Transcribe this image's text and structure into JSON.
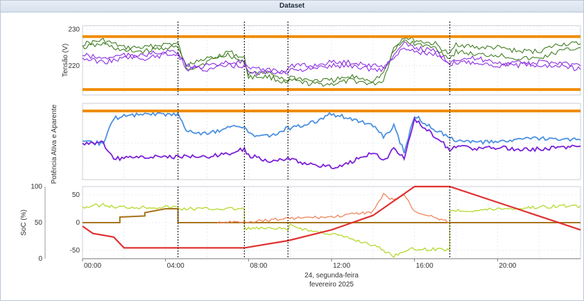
{
  "window": {
    "title": "Dataset"
  },
  "colors": {
    "orange_limit": "#f08c00",
    "dark_green": "#3f7d20",
    "purple": "#8a2be2",
    "blue": "#4a90e2",
    "violet": "#7a1fd8",
    "lime": "#b4d82b",
    "brown": "#a6731a",
    "salmon": "#f0845a",
    "red": "#e03030",
    "divider": "#222222",
    "grid": "#d9dde4"
  },
  "chart_data": [
    {
      "type": "line",
      "ylabel": "Tensão (V)",
      "ylim": [
        212,
        231
      ],
      "yticks": [
        "230",
        "220"
      ],
      "ytick_values": [
        230,
        220
      ],
      "x": [
        0,
        1,
        2,
        3,
        4,
        4.6,
        5,
        6,
        7,
        7.8,
        8,
        9,
        9.9,
        10,
        11,
        12,
        13,
        14,
        14.5,
        15,
        15.5,
        16,
        17,
        17.7,
        18,
        19,
        20,
        21,
        22,
        23,
        24
      ],
      "limits": [
        228,
        213.5
      ],
      "series": [
        {
          "name": "",
          "color_key": "dark_green",
          "values": [
            226,
            227,
            225,
            225,
            226,
            226,
            219,
            221,
            224,
            222,
            217,
            217,
            215,
            216,
            215,
            215,
            216,
            215,
            216,
            225,
            228,
            227,
            226,
            223,
            226,
            225,
            225,
            224,
            224,
            226,
            226
          ]
        },
        {
          "name": "",
          "color_key": "dark_green",
          "values": [
            225,
            226,
            224,
            224,
            225,
            225,
            220,
            222,
            223,
            221,
            218,
            218,
            216,
            217,
            216,
            216,
            217,
            216,
            218,
            224,
            227,
            226,
            225,
            222,
            224,
            223,
            223,
            222,
            222,
            224,
            225
          ]
        },
        {
          "name": "",
          "color_key": "purple",
          "values": [
            222,
            221,
            222,
            223,
            224,
            224,
            219,
            220,
            221,
            221,
            219,
            219,
            218,
            219,
            219,
            220,
            220,
            219,
            219,
            223,
            226,
            225,
            224,
            221,
            222,
            222,
            221,
            220,
            221,
            221,
            220
          ]
        },
        {
          "name": "",
          "color_key": "purple",
          "values": [
            223,
            222,
            223,
            222,
            223,
            223,
            220,
            219,
            220,
            220,
            218,
            218,
            219,
            220,
            220,
            221,
            221,
            220,
            220,
            222,
            225,
            224,
            223,
            220,
            221,
            221,
            220,
            221,
            220,
            220,
            219
          ]
        }
      ]
    },
    {
      "type": "line",
      "ylabel": "Potência Ativa e Aparente",
      "ylim": [
        -1.2,
        1.3
      ],
      "limits": [
        1.05
      ],
      "x": [
        0,
        1,
        1.5,
        2,
        3,
        4,
        4.6,
        5,
        6,
        7,
        7.8,
        8,
        9,
        9.9,
        10,
        11,
        12,
        13,
        14,
        14.5,
        15,
        15.5,
        16,
        17,
        17.7,
        18,
        19,
        20,
        21,
        22,
        23,
        24
      ],
      "series": [
        {
          "name": "",
          "color_key": "blue",
          "values": [
            0,
            0,
            0.8,
            0.9,
            0.95,
            0.95,
            0.95,
            0.4,
            0.3,
            0.5,
            0.55,
            0.3,
            0.2,
            0.5,
            0.5,
            0.65,
            0.95,
            0.8,
            0.55,
            0.2,
            0.55,
            -0.3,
            0.9,
            0.4,
            0.2,
            0.1,
            0,
            0.05,
            0.1,
            0.15,
            0.1,
            0.1
          ]
        },
        {
          "name": "",
          "color_key": "violet",
          "values": [
            0,
            0,
            -0.5,
            -0.5,
            -0.45,
            -0.45,
            -0.45,
            -0.45,
            -0.45,
            -0.35,
            -0.2,
            -0.4,
            -0.6,
            -0.5,
            -0.55,
            -0.7,
            -0.8,
            -0.6,
            -0.3,
            -0.6,
            -0.2,
            -0.5,
            0.8,
            0.2,
            -0.2,
            -0.1,
            -0.2,
            -0.15,
            -0.2,
            -0.2,
            -0.15,
            -0.1
          ]
        }
      ]
    },
    {
      "type": "line",
      "ylabel": "SoC (%)",
      "ylim_left": [
        0,
        100
      ],
      "yticks_left": [
        "100",
        "50",
        "0"
      ],
      "ytick_left_values": [
        100,
        50,
        0
      ],
      "ylim_right": [
        -65,
        65
      ],
      "yticks_right": [
        "50",
        "0",
        "-50"
      ],
      "ytick_right_values": [
        50,
        0,
        -50
      ],
      "xticks": [
        "00:00",
        "04:00",
        "08:00",
        "12:00",
        "16:00",
        "20:00"
      ],
      "xtick_values": [
        0,
        4,
        8,
        12,
        16,
        20
      ],
      "xlim": [
        0,
        24
      ],
      "xcaption": [
        "24, segunda-feira",
        "fevereiro 2025"
      ],
      "dividers": [
        4.6,
        7.8,
        9.9,
        17.7
      ],
      "series_right": [
        {
          "name": "",
          "color_key": "lime",
          "points": [
            [
              0,
              28
            ],
            [
              1,
              32
            ],
            [
              1.5,
              28
            ],
            [
              3,
              28
            ],
            [
              4.6,
              28
            ],
            [
              4.6,
              25
            ],
            [
              7.8,
              25
            ],
            [
              7.8,
              -10
            ],
            [
              9.9,
              -12
            ],
            [
              10,
              -5
            ],
            [
              11,
              -15
            ],
            [
              12,
              -20
            ],
            [
              13,
              -30
            ],
            [
              14,
              -40
            ],
            [
              14.5,
              -50
            ],
            [
              15,
              -60
            ],
            [
              15.5,
              -50
            ],
            [
              16,
              -48
            ],
            [
              17,
              -48
            ],
            [
              17.7,
              -48
            ],
            [
              17.7,
              22
            ],
            [
              19,
              22
            ],
            [
              20,
              25
            ],
            [
              21,
              26
            ],
            [
              22,
              28
            ],
            [
              23,
              30
            ],
            [
              24,
              30
            ]
          ]
        },
        {
          "name": "",
          "color_key": "brown",
          "points": [
            [
              0,
              0
            ],
            [
              1.8,
              0
            ],
            [
              1.8,
              10
            ],
            [
              3,
              12
            ],
            [
              3,
              18
            ],
            [
              4,
              25
            ],
            [
              4.6,
              25
            ],
            [
              4.6,
              0
            ],
            [
              24,
              0
            ]
          ]
        },
        {
          "name": "",
          "color_key": "salmon",
          "points": [
            [
              6.5,
              0
            ],
            [
              8,
              2
            ],
            [
              10,
              8
            ],
            [
              12,
              10
            ],
            [
              13,
              15
            ],
            [
              14,
              20
            ],
            [
              14.5,
              50
            ],
            [
              15,
              40
            ],
            [
              15.5,
              50
            ],
            [
              16,
              20
            ],
            [
              17,
              10
            ],
            [
              17.7,
              0
            ]
          ]
        }
      ],
      "series_left": [
        {
          "name": "",
          "color_key": "red",
          "points": [
            [
              0,
              45
            ],
            [
              0.5,
              35
            ],
            [
              1.5,
              30
            ],
            [
              2,
              15
            ],
            [
              4.6,
              15
            ],
            [
              7.8,
              15
            ],
            [
              9.9,
              25
            ],
            [
              12,
              40
            ],
            [
              14,
              60
            ],
            [
              16,
              100
            ],
            [
              17.7,
              100
            ],
            [
              24,
              40
            ]
          ]
        }
      ]
    }
  ]
}
